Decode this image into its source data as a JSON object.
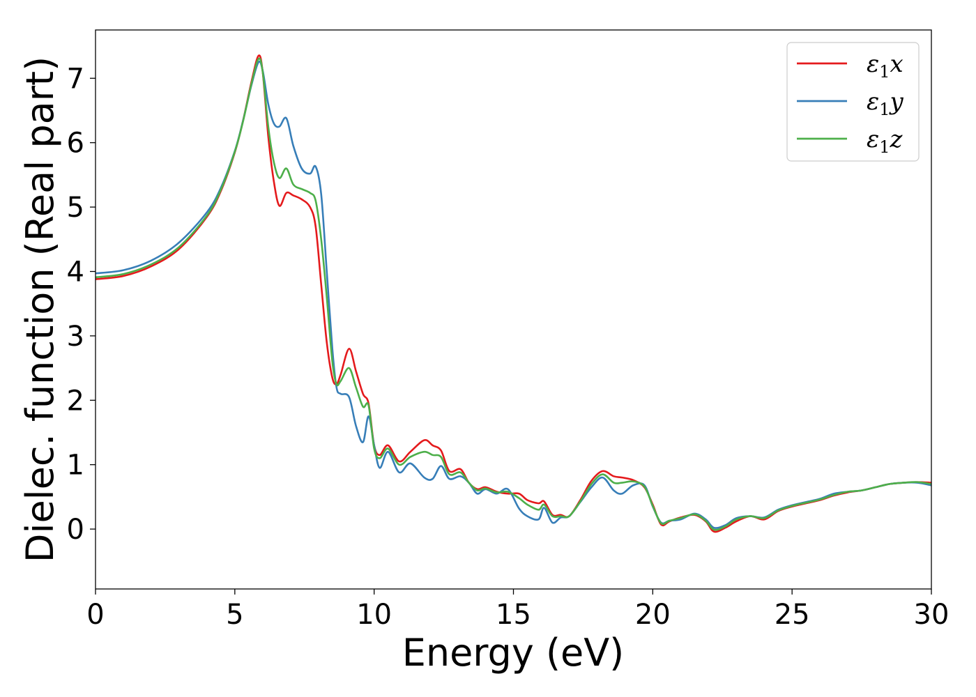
{
  "chart_data": {
    "type": "line",
    "xlabel": "Energy (eV)",
    "ylabel": "Dielec. function (Real part)",
    "xlim": [
      0,
      30
    ],
    "ylim": [
      -0.93,
      7.75
    ],
    "xticks": [
      0,
      5,
      10,
      15,
      20,
      25,
      30
    ],
    "yticks": [
      0,
      1,
      2,
      3,
      4,
      5,
      6,
      7
    ],
    "xtick_labels": [
      "0",
      "5",
      "10",
      "15",
      "20",
      "25",
      "30"
    ],
    "ytick_labels": [
      "0",
      "1",
      "2",
      "3",
      "4",
      "5",
      "6",
      "7"
    ],
    "legend_position": "top-right",
    "series": [
      {
        "name": "x",
        "label_main": "ε",
        "label_sub": "1",
        "label_var": "x",
        "color": "#e41a1c",
        "x": [
          0,
          1,
          2,
          3,
          4,
          4.5,
          5,
          5.3,
          5.6,
          5.85,
          6.0,
          6.2,
          6.4,
          6.6,
          6.85,
          7.1,
          7.4,
          7.7,
          7.9,
          8.1,
          8.3,
          8.5,
          8.65,
          8.8,
          9.1,
          9.35,
          9.6,
          9.8,
          10.0,
          10.2,
          10.5,
          10.9,
          11.3,
          11.8,
          12.1,
          12.4,
          12.7,
          13.1,
          13.4,
          13.7,
          14.0,
          14.4,
          14.8,
          15.2,
          15.5,
          15.9,
          16.1,
          16.4,
          16.7,
          17.0,
          17.4,
          17.8,
          18.2,
          18.6,
          18.9,
          19.3,
          19.7,
          20.0,
          20.3,
          20.6,
          21.0,
          21.5,
          21.9,
          22.2,
          22.6,
          23.0,
          23.5,
          24.0,
          24.5,
          25.0,
          25.5,
          26.0,
          26.5,
          27.0,
          27.5,
          28.0,
          28.5,
          29.0,
          29.5,
          30.0
        ],
        "y": [
          3.88,
          3.93,
          4.08,
          4.35,
          4.85,
          5.25,
          5.85,
          6.35,
          6.95,
          7.35,
          7.1,
          6.1,
          5.4,
          5.02,
          5.22,
          5.18,
          5.12,
          5.0,
          4.7,
          3.8,
          2.9,
          2.35,
          2.25,
          2.4,
          2.8,
          2.45,
          2.1,
          1.95,
          1.3,
          1.15,
          1.3,
          1.05,
          1.2,
          1.38,
          1.3,
          1.22,
          0.9,
          0.93,
          0.72,
          0.62,
          0.65,
          0.58,
          0.55,
          0.55,
          0.45,
          0.4,
          0.43,
          0.22,
          0.22,
          0.2,
          0.45,
          0.75,
          0.9,
          0.82,
          0.8,
          0.76,
          0.65,
          0.38,
          0.07,
          0.12,
          0.18,
          0.22,
          0.12,
          -0.04,
          0.02,
          0.12,
          0.2,
          0.15,
          0.28,
          0.35,
          0.4,
          0.45,
          0.52,
          0.57,
          0.6,
          0.65,
          0.7,
          0.72,
          0.73,
          0.72
        ]
      },
      {
        "name": "y",
        "label_main": "ε",
        "label_sub": "1",
        "label_var": "y",
        "color": "#377eb8",
        "x": [
          0,
          1,
          2,
          3,
          4,
          4.5,
          5,
          5.3,
          5.6,
          5.85,
          6.0,
          6.2,
          6.4,
          6.6,
          6.85,
          7.1,
          7.4,
          7.7,
          7.9,
          8.1,
          8.3,
          8.5,
          8.65,
          8.8,
          9.1,
          9.35,
          9.6,
          9.8,
          10.0,
          10.2,
          10.5,
          10.9,
          11.3,
          11.8,
          12.1,
          12.4,
          12.7,
          13.1,
          13.4,
          13.7,
          14.0,
          14.4,
          14.8,
          15.2,
          15.5,
          15.9,
          16.1,
          16.4,
          16.7,
          17.0,
          17.4,
          17.8,
          18.2,
          18.6,
          18.9,
          19.3,
          19.7,
          20.0,
          20.3,
          20.6,
          21.0,
          21.5,
          21.9,
          22.2,
          22.6,
          23.0,
          23.5,
          24.0,
          24.5,
          25.0,
          25.5,
          26.0,
          26.5,
          27.0,
          27.5,
          28.0,
          28.5,
          29.0,
          29.5,
          30.0
        ],
        "y": [
          3.97,
          4.02,
          4.17,
          4.45,
          4.92,
          5.3,
          5.87,
          6.35,
          6.9,
          7.25,
          7.12,
          6.6,
          6.3,
          6.25,
          6.38,
          5.95,
          5.6,
          5.52,
          5.63,
          5.2,
          4.0,
          2.8,
          2.2,
          2.1,
          2.05,
          1.6,
          1.35,
          1.75,
          1.3,
          0.95,
          1.2,
          0.88,
          1.02,
          0.8,
          0.78,
          0.98,
          0.78,
          0.82,
          0.72,
          0.55,
          0.62,
          0.55,
          0.62,
          0.32,
          0.2,
          0.15,
          0.33,
          0.1,
          0.18,
          0.2,
          0.42,
          0.65,
          0.8,
          0.6,
          0.55,
          0.68,
          0.68,
          0.35,
          0.1,
          0.13,
          0.15,
          0.24,
          0.15,
          0.02,
          0.06,
          0.17,
          0.2,
          0.18,
          0.3,
          0.37,
          0.42,
          0.47,
          0.55,
          0.58,
          0.6,
          0.65,
          0.7,
          0.72,
          0.72,
          0.68
        ]
      },
      {
        "name": "z",
        "label_main": "ε",
        "label_sub": "1",
        "label_var": "z",
        "color": "#4daf4a",
        "x": [
          0,
          1,
          2,
          3,
          4,
          4.5,
          5,
          5.3,
          5.6,
          5.85,
          6.0,
          6.2,
          6.4,
          6.6,
          6.85,
          7.1,
          7.4,
          7.7,
          7.9,
          8.1,
          8.3,
          8.5,
          8.65,
          8.8,
          9.1,
          9.35,
          9.6,
          9.8,
          10.0,
          10.2,
          10.5,
          10.9,
          11.3,
          11.8,
          12.1,
          12.4,
          12.7,
          13.1,
          13.4,
          13.7,
          14.0,
          14.4,
          14.8,
          15.2,
          15.5,
          15.9,
          16.1,
          16.4,
          16.7,
          17.0,
          17.4,
          17.8,
          18.2,
          18.6,
          18.9,
          19.3,
          19.7,
          20.0,
          20.3,
          20.6,
          21.0,
          21.5,
          21.9,
          22.2,
          22.6,
          23.0,
          23.5,
          24.0,
          24.5,
          25.0,
          25.5,
          26.0,
          26.5,
          27.0,
          27.5,
          28.0,
          28.5,
          29.0,
          29.5,
          30.0
        ],
        "y": [
          3.91,
          3.96,
          4.11,
          4.38,
          4.87,
          5.27,
          5.86,
          6.34,
          6.92,
          7.3,
          7.1,
          6.25,
          5.7,
          5.45,
          5.6,
          5.35,
          5.28,
          5.22,
          5.1,
          4.5,
          3.6,
          2.6,
          2.25,
          2.3,
          2.5,
          2.2,
          1.9,
          1.92,
          1.25,
          1.1,
          1.25,
          1.0,
          1.12,
          1.2,
          1.15,
          1.12,
          0.85,
          0.88,
          0.72,
          0.6,
          0.63,
          0.57,
          0.58,
          0.48,
          0.38,
          0.3,
          0.38,
          0.2,
          0.2,
          0.2,
          0.43,
          0.7,
          0.85,
          0.72,
          0.72,
          0.74,
          0.66,
          0.36,
          0.09,
          0.13,
          0.17,
          0.23,
          0.13,
          -0.01,
          0.04,
          0.15,
          0.2,
          0.17,
          0.29,
          0.36,
          0.41,
          0.46,
          0.53,
          0.58,
          0.6,
          0.65,
          0.7,
          0.72,
          0.73,
          0.7
        ]
      }
    ]
  }
}
